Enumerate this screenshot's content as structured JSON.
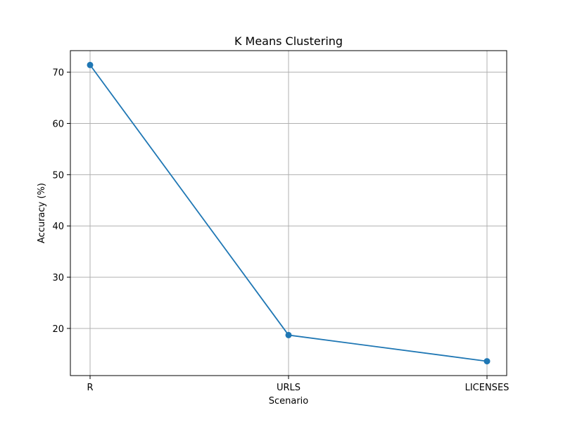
{
  "chart_data": {
    "type": "line",
    "title": "K Means Clustering",
    "xlabel": "Scenario",
    "ylabel": "Accuracy (%)",
    "categories": [
      "R",
      "URLS",
      "LICENSES"
    ],
    "series": [
      {
        "values": [
          71.4,
          18.7,
          13.6
        ]
      }
    ],
    "ylim": [
      10.8,
      74.2
    ],
    "yticks": [
      20,
      30,
      40,
      50,
      60,
      70
    ],
    "grid": true,
    "line_color": "#1f77b4"
  }
}
